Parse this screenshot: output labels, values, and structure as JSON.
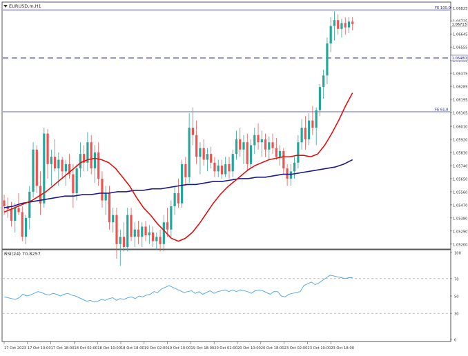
{
  "window": {
    "symbol_title": "EURUSD,m,H1",
    "menu_icon": "triangle-down-icon"
  },
  "chart_data": [
    {
      "type": "candlestick",
      "panel": "price",
      "y_ticks": [
        "1.06825",
        "1.06735",
        "1.06645",
        "1.06555",
        "1.06465",
        "1.06375",
        "1.06285",
        "1.06195",
        "1.06105",
        "1.06010",
        "1.05920",
        "1.05830",
        "1.05740",
        "1.05650",
        "1.05560",
        "1.05470",
        "1.05380",
        "1.05290",
        "1.05200"
      ],
      "ylim": [
        1.0518,
        1.0685
      ],
      "fib_levels": [
        {
          "label": "FE 100.0",
          "value": 1.0681
        },
        {
          "label": "FE 61.8",
          "value": 1.0611
        }
      ],
      "dashed_level": {
        "value": 1.0648,
        "label": "1.06480"
      },
      "current_price": {
        "value": 1.06713,
        "label": "1.06713"
      },
      "x_ticks": [
        "17 Oct 2023",
        "17 Oct 10:00",
        "17 Oct 18:00",
        "18 Oct 02:00",
        "18 Oct 10:00",
        "18 Oct 18:00",
        "19 Oct 02:00",
        "19 Oct 10:00",
        "19 Oct 18:00",
        "20 Oct 02:00",
        "20 Oct 10:00",
        "20 Oct 18:00",
        "23 Oct 02:00",
        "23 Oct 10:00",
        "23 Oct 18:00"
      ],
      "candles": [
        {
          "o": 1.055,
          "h": 1.0554,
          "l": 1.054,
          "c": 1.0546
        },
        {
          "o": 1.0546,
          "h": 1.0552,
          "l": 1.0538,
          "c": 1.0544
        },
        {
          "o": 1.0544,
          "h": 1.0549,
          "l": 1.0532,
          "c": 1.0536
        },
        {
          "o": 1.0536,
          "h": 1.0548,
          "l": 1.0528,
          "c": 1.0545
        },
        {
          "o": 1.0545,
          "h": 1.0555,
          "l": 1.054,
          "c": 1.0542
        },
        {
          "o": 1.0542,
          "h": 1.0546,
          "l": 1.0522,
          "c": 1.0525
        },
        {
          "o": 1.0525,
          "h": 1.054,
          "l": 1.052,
          "c": 1.0538
        },
        {
          "o": 1.0538,
          "h": 1.056,
          "l": 1.053,
          "c": 1.0556
        },
        {
          "o": 1.0556,
          "h": 1.059,
          "l": 1.0552,
          "c": 1.0585
        },
        {
          "o": 1.0585,
          "h": 1.0588,
          "l": 1.0555,
          "c": 1.056
        },
        {
          "o": 1.056,
          "h": 1.057,
          "l": 1.054,
          "c": 1.0548
        },
        {
          "o": 1.0548,
          "h": 1.06,
          "l": 1.0545,
          "c": 1.0596
        },
        {
          "o": 1.0596,
          "h": 1.0599,
          "l": 1.0565,
          "c": 1.0575
        },
        {
          "o": 1.0575,
          "h": 1.0585,
          "l": 1.056,
          "c": 1.058
        },
        {
          "o": 1.058,
          "h": 1.0592,
          "l": 1.057,
          "c": 1.0572
        },
        {
          "o": 1.0572,
          "h": 1.0583,
          "l": 1.056,
          "c": 1.0578
        },
        {
          "o": 1.0578,
          "h": 1.058,
          "l": 1.0565,
          "c": 1.057
        },
        {
          "o": 1.057,
          "h": 1.0578,
          "l": 1.056,
          "c": 1.0575
        },
        {
          "o": 1.0575,
          "h": 1.0582,
          "l": 1.0565,
          "c": 1.0568
        },
        {
          "o": 1.0568,
          "h": 1.0575,
          "l": 1.0545,
          "c": 1.0555
        },
        {
          "o": 1.0555,
          "h": 1.0575,
          "l": 1.055,
          "c": 1.0572
        },
        {
          "o": 1.0572,
          "h": 1.059,
          "l": 1.0566,
          "c": 1.0582
        },
        {
          "o": 1.0582,
          "h": 1.0588,
          "l": 1.057,
          "c": 1.0576
        },
        {
          "o": 1.0576,
          "h": 1.0597,
          "l": 1.057,
          "c": 1.059
        },
        {
          "o": 1.059,
          "h": 1.0595,
          "l": 1.0568,
          "c": 1.0572
        },
        {
          "o": 1.0572,
          "h": 1.0588,
          "l": 1.0562,
          "c": 1.0583
        },
        {
          "o": 1.0583,
          "h": 1.059,
          "l": 1.056,
          "c": 1.0565
        },
        {
          "o": 1.0565,
          "h": 1.057,
          "l": 1.0545,
          "c": 1.055
        },
        {
          "o": 1.055,
          "h": 1.056,
          "l": 1.054,
          "c": 1.0555
        },
        {
          "o": 1.0555,
          "h": 1.056,
          "l": 1.053,
          "c": 1.0535
        },
        {
          "o": 1.0535,
          "h": 1.0545,
          "l": 1.0528,
          "c": 1.054
        },
        {
          "o": 1.054,
          "h": 1.0545,
          "l": 1.051,
          "c": 1.052
        },
        {
          "o": 1.052,
          "h": 1.053,
          "l": 1.0505,
          "c": 1.0525
        },
        {
          "o": 1.0525,
          "h": 1.0535,
          "l": 1.0515,
          "c": 1.0518
        },
        {
          "o": 1.0518,
          "h": 1.0545,
          "l": 1.0515,
          "c": 1.054
        },
        {
          "o": 1.054,
          "h": 1.0545,
          "l": 1.0522,
          "c": 1.0525
        },
        {
          "o": 1.0525,
          "h": 1.0535,
          "l": 1.0518,
          "c": 1.053
        },
        {
          "o": 1.053,
          "h": 1.0536,
          "l": 1.052,
          "c": 1.0525
        },
        {
          "o": 1.0525,
          "h": 1.0535,
          "l": 1.0518,
          "c": 1.0532
        },
        {
          "o": 1.0532,
          "h": 1.0536,
          "l": 1.0522,
          "c": 1.0526
        },
        {
          "o": 1.0526,
          "h": 1.0533,
          "l": 1.052,
          "c": 1.0528
        },
        {
          "o": 1.0528,
          "h": 1.0532,
          "l": 1.0518,
          "c": 1.0522
        },
        {
          "o": 1.0522,
          "h": 1.0528,
          "l": 1.0516,
          "c": 1.0525
        },
        {
          "o": 1.0525,
          "h": 1.053,
          "l": 1.0515,
          "c": 1.052
        },
        {
          "o": 1.052,
          "h": 1.054,
          "l": 1.0515,
          "c": 1.0535
        },
        {
          "o": 1.0535,
          "h": 1.0545,
          "l": 1.0525,
          "c": 1.053
        },
        {
          "o": 1.053,
          "h": 1.055,
          "l": 1.0525,
          "c": 1.0546
        },
        {
          "o": 1.0546,
          "h": 1.056,
          "l": 1.054,
          "c": 1.0555
        },
        {
          "o": 1.0555,
          "h": 1.0565,
          "l": 1.0545,
          "c": 1.0548
        },
        {
          "o": 1.0548,
          "h": 1.0578,
          "l": 1.0545,
          "c": 1.0575
        },
        {
          "o": 1.0575,
          "h": 1.058,
          "l": 1.056,
          "c": 1.0566
        },
        {
          "o": 1.0566,
          "h": 1.061,
          "l": 1.0562,
          "c": 1.06
        },
        {
          "o": 1.06,
          "h": 1.0614,
          "l": 1.0588,
          "c": 1.0595
        },
        {
          "o": 1.0595,
          "h": 1.0605,
          "l": 1.0575,
          "c": 1.058
        },
        {
          "o": 1.058,
          "h": 1.059,
          "l": 1.0568,
          "c": 1.0586
        },
        {
          "o": 1.0586,
          "h": 1.0592,
          "l": 1.0574,
          "c": 1.0578
        },
        {
          "o": 1.0578,
          "h": 1.0586,
          "l": 1.057,
          "c": 1.0582
        },
        {
          "o": 1.0582,
          "h": 1.0587,
          "l": 1.0572,
          "c": 1.0576
        },
        {
          "o": 1.0576,
          "h": 1.058,
          "l": 1.0566,
          "c": 1.057
        },
        {
          "o": 1.057,
          "h": 1.0578,
          "l": 1.0566,
          "c": 1.0574
        },
        {
          "o": 1.0574,
          "h": 1.0578,
          "l": 1.0565,
          "c": 1.0568
        },
        {
          "o": 1.0568,
          "h": 1.058,
          "l": 1.0566,
          "c": 1.0575
        },
        {
          "o": 1.0575,
          "h": 1.058,
          "l": 1.0565,
          "c": 1.057
        },
        {
          "o": 1.057,
          "h": 1.0585,
          "l": 1.0566,
          "c": 1.0582
        },
        {
          "o": 1.0582,
          "h": 1.0598,
          "l": 1.0578,
          "c": 1.0592
        },
        {
          "o": 1.0592,
          "h": 1.06,
          "l": 1.058,
          "c": 1.0585
        },
        {
          "o": 1.0585,
          "h": 1.0595,
          "l": 1.0575,
          "c": 1.059
        },
        {
          "o": 1.059,
          "h": 1.0596,
          "l": 1.057,
          "c": 1.0575
        },
        {
          "o": 1.0575,
          "h": 1.0592,
          "l": 1.0572,
          "c": 1.0588
        },
        {
          "o": 1.0588,
          "h": 1.06,
          "l": 1.0582,
          "c": 1.0595
        },
        {
          "o": 1.0595,
          "h": 1.0603,
          "l": 1.0585,
          "c": 1.059
        },
        {
          "o": 1.059,
          "h": 1.0598,
          "l": 1.058,
          "c": 1.0592
        },
        {
          "o": 1.0592,
          "h": 1.0596,
          "l": 1.058,
          "c": 1.0585
        },
        {
          "o": 1.0585,
          "h": 1.0594,
          "l": 1.0578,
          "c": 1.059
        },
        {
          "o": 1.059,
          "h": 1.0596,
          "l": 1.0582,
          "c": 1.0586
        },
        {
          "o": 1.0586,
          "h": 1.0593,
          "l": 1.0578,
          "c": 1.058
        },
        {
          "o": 1.058,
          "h": 1.0588,
          "l": 1.0574,
          "c": 1.0584
        },
        {
          "o": 1.0584,
          "h": 1.0586,
          "l": 1.0568,
          "c": 1.0572
        },
        {
          "o": 1.0572,
          "h": 1.0575,
          "l": 1.056,
          "c": 1.0565
        },
        {
          "o": 1.0565,
          "h": 1.0575,
          "l": 1.056,
          "c": 1.057
        },
        {
          "o": 1.057,
          "h": 1.058,
          "l": 1.0565,
          "c": 1.0576
        },
        {
          "o": 1.0576,
          "h": 1.0595,
          "l": 1.0572,
          "c": 1.059
        },
        {
          "o": 1.059,
          "h": 1.0606,
          "l": 1.0585,
          "c": 1.06
        },
        {
          "o": 1.06,
          "h": 1.0608,
          "l": 1.0585,
          "c": 1.0592
        },
        {
          "o": 1.0592,
          "h": 1.061,
          "l": 1.0588,
          "c": 1.0605
        },
        {
          "o": 1.0605,
          "h": 1.0615,
          "l": 1.0595,
          "c": 1.06
        },
        {
          "o": 1.06,
          "h": 1.0614,
          "l": 1.0588,
          "c": 1.0612
        },
        {
          "o": 1.0612,
          "h": 1.063,
          "l": 1.0608,
          "c": 1.0628
        },
        {
          "o": 1.0628,
          "h": 1.064,
          "l": 1.062,
          "c": 1.0636
        },
        {
          "o": 1.0636,
          "h": 1.0662,
          "l": 1.063,
          "c": 1.0658
        },
        {
          "o": 1.0658,
          "h": 1.0676,
          "l": 1.0652,
          "c": 1.067
        },
        {
          "o": 1.067,
          "h": 1.068,
          "l": 1.066,
          "c": 1.0674
        },
        {
          "o": 1.0674,
          "h": 1.0678,
          "l": 1.0664,
          "c": 1.0668
        },
        {
          "o": 1.0668,
          "h": 1.0675,
          "l": 1.0662,
          "c": 1.0672
        },
        {
          "o": 1.0672,
          "h": 1.0676,
          "l": 1.0664,
          "c": 1.0669
        },
        {
          "o": 1.0669,
          "h": 1.0676,
          "l": 1.0665,
          "c": 1.0673
        },
        {
          "o": 1.0673,
          "h": 1.0676,
          "l": 1.0667,
          "c": 1.06713
        }
      ],
      "ma_fast": {
        "name": "MA red",
        "color": "#e01010",
        "values": [
          1.0542,
          1.0544,
          1.0546,
          1.0548,
          1.055,
          1.0553,
          1.0556,
          1.056,
          1.0564,
          1.0568,
          1.0572,
          1.0576,
          1.0578,
          1.0579,
          1.0578,
          1.0576,
          1.0572,
          1.0566,
          1.056,
          1.0552,
          1.0545,
          1.054,
          1.0534,
          1.0529,
          1.0524,
          1.0522,
          1.0524,
          1.0528,
          1.0534,
          1.0541,
          1.0548,
          1.0554,
          1.0559,
          1.0563,
          1.0567,
          1.0571,
          1.0574,
          1.0576,
          1.0578,
          1.0579,
          1.058,
          1.058,
          1.0581,
          1.0581,
          1.058,
          1.0582,
          1.0588,
          1.0596,
          1.0605,
          1.0615,
          1.0624
        ]
      },
      "ma_slow": {
        "name": "MA blue",
        "color": "#1a1a8c",
        "values": [
          1.0545,
          1.0546,
          1.0548,
          1.0549,
          1.055,
          1.0551,
          1.0552,
          1.0553,
          1.0553,
          1.0554,
          1.0554,
          1.0555,
          1.0555,
          1.0556,
          1.0556,
          1.0557,
          1.0557,
          1.0558,
          1.0558,
          1.0559,
          1.056,
          1.0561,
          1.0561,
          1.0562,
          1.0563,
          1.0563,
          1.0564,
          1.0565,
          1.0565,
          1.0566,
          1.0566,
          1.0567,
          1.0568,
          1.0568,
          1.0569,
          1.057,
          1.0571,
          1.0572,
          1.0573,
          1.0575,
          1.0578
        ]
      }
    },
    {
      "type": "line",
      "panel": "indicator",
      "title": "RSI(24) 70.8257",
      "y_ticks": [
        "100",
        "70",
        "50",
        "30",
        "0"
      ],
      "levels": [
        70,
        30
      ],
      "ylim": [
        0,
        100
      ],
      "series": [
        {
          "name": "RSI(24)",
          "color": "#5aa9e6",
          "values": [
            49,
            48,
            47,
            46,
            48,
            52,
            50,
            51,
            53,
            55,
            54,
            52,
            51,
            53,
            52,
            50,
            52,
            53,
            51,
            50,
            48,
            46,
            44,
            45,
            43,
            44,
            46,
            45,
            47,
            48,
            45,
            47,
            46,
            48,
            49,
            47,
            50,
            49,
            51,
            52,
            55,
            54,
            58,
            60,
            62,
            60,
            58,
            56,
            54,
            55,
            56,
            53,
            55,
            52,
            54,
            56,
            53,
            55,
            56,
            57,
            55,
            57,
            55,
            57,
            56,
            55,
            53,
            56,
            57,
            56,
            54,
            52,
            55,
            55,
            50,
            49,
            52,
            53,
            54,
            55,
            62,
            64,
            66,
            63,
            65,
            68,
            71,
            74,
            73,
            72,
            71,
            70,
            71,
            71
          ]
        }
      ]
    }
  ]
}
